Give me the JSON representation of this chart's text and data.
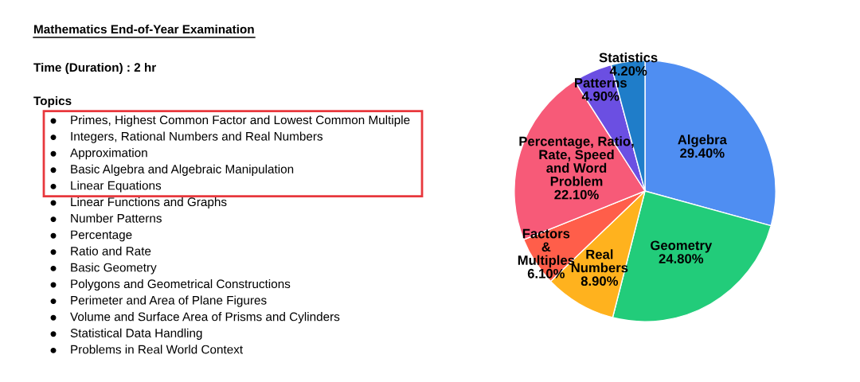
{
  "chart_data": [
    {
      "type": "other",
      "title": "Mathematics End-of-Year Examination",
      "annotations": [
        "Time (Duration) : 2 hr",
        "Topics",
        "Primes, Highest Common Factor and Lowest Common Multiple",
        "Integers, Rational Numbers and Real Numbers",
        "Approximation",
        "Basic Algebra and Algebraic Manipulation",
        "Linear Equations",
        "Linear Functions and Graphs",
        "Number Patterns",
        "Percentage",
        "Ratio and Rate",
        "Basic Geometry",
        "Polygons and Geometrical Constructions",
        "Perimeter and Area of Plane Figures",
        "Volume and Surface Area of Prisms and Cylinders",
        "Statistical Data Handling",
        "Problems in Real World Context"
      ]
    },
    {
      "type": "pie",
      "categories": [
        "Algebra",
        "Geometry",
        "Real\nNumbers",
        "Factors\n&\nMultiples",
        "Percentage, Ratio,\nRate, Speed\nand Word\nProblem",
        "Patterns",
        "Statistics"
      ],
      "values": [
        29.4,
        24.8,
        8.9,
        6.1,
        22.1,
        4.9,
        4.2
      ],
      "value_labels": [
        "29.40%",
        "24.80%",
        "8.90%",
        "6.10%",
        "22.10%",
        "4.90%",
        "4.20%"
      ],
      "colors": [
        "#4f8ef2",
        "#22cc7a",
        "#ffb21e",
        "#ff5e4a",
        "#f75a78",
        "#6b4fe2",
        "#1f7dc9"
      ]
    }
  ]
}
